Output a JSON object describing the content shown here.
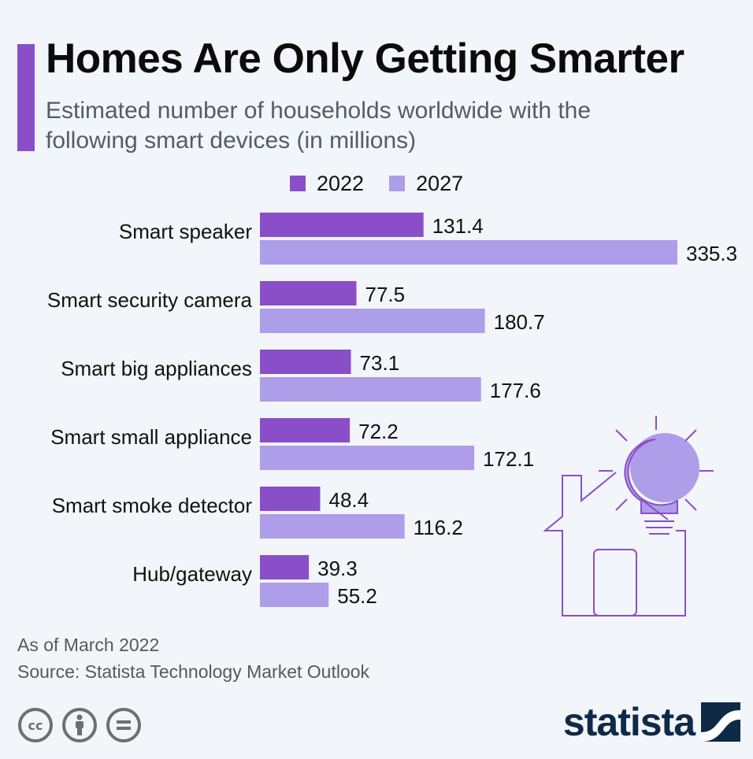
{
  "title": "Homes Are Only Getting Smarter",
  "subtitle": "Estimated number of households worldwide with the following smart devices (in millions)",
  "footnote": {
    "line1": "As of March 2022",
    "line2": "Source: Statista Technology Market Outlook"
  },
  "brand": "statista",
  "colors": {
    "accent": "#8a4fc8",
    "series_2022": "#8a4fc8",
    "series_2027": "#ae9de8",
    "illustration_stroke": "#8a4fc8",
    "illustration_fill": "#ae9de8",
    "brand": "#0e2a47",
    "license_icons": "#6b6f73"
  },
  "icons": [
    "creative-commons-icon",
    "attribution-icon",
    "no-derivatives-icon",
    "statista-logo-icon",
    "smart-home-lightbulb-illustration"
  ],
  "chart_data": {
    "type": "bar",
    "orientation": "horizontal",
    "categories": [
      "Smart speaker",
      "Smart security camera",
      "Smart big appliances",
      "Smart small appliance",
      "Smart smoke detector",
      "Hub/gateway"
    ],
    "series": [
      {
        "name": "2022",
        "values": [
          131.4,
          77.5,
          73.1,
          72.2,
          48.4,
          39.3
        ]
      },
      {
        "name": "2027",
        "values": [
          335.3,
          180.7,
          177.6,
          172.1,
          116.2,
          55.2
        ]
      }
    ],
    "xlim": [
      0,
      335.3
    ],
    "grid": false,
    "legend_position": "top",
    "data_labels": true
  }
}
